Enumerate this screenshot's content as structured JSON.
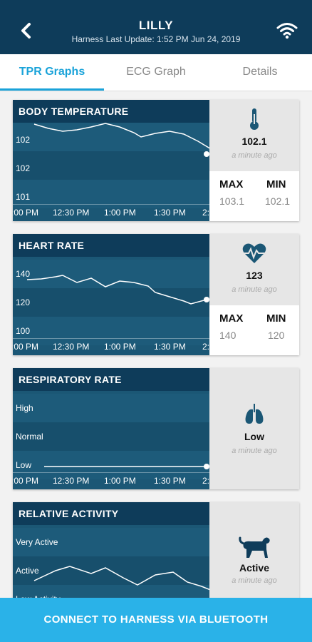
{
  "header": {
    "title": "LILLY",
    "subtitle": "Harness Last Update: 1:52 PM Jun 24, 2019",
    "back_icon": "chevron-left-icon",
    "wifi_icon": "wifi-icon"
  },
  "tabs": [
    {
      "label": "TPR Graphs",
      "active": true
    },
    {
      "label": "ECG Graph",
      "active": false
    },
    {
      "label": "Details",
      "active": false
    }
  ],
  "time_labels": [
    ":00 PM",
    "12:30 PM",
    "1:00 PM",
    "1:30 PM",
    "2:"
  ],
  "cards": {
    "body_temperature": {
      "title": "BODY TEMPERATURE",
      "y_labels": [
        "102",
        "102",
        "101"
      ],
      "value": "102.1",
      "ago": "a minute ago",
      "max_label": "MAX",
      "min_label": "MIN",
      "max": "103.1",
      "min": "102.1",
      "icon": "thermometer-icon"
    },
    "heart_rate": {
      "title": "HEART RATE",
      "y_labels": [
        "140",
        "120",
        "100"
      ],
      "value": "123",
      "ago": "a minute ago",
      "max_label": "MAX",
      "min_label": "MIN",
      "max": "140",
      "min": "120",
      "icon": "heart-pulse-icon"
    },
    "respiratory_rate": {
      "title": "RESPIRATORY RATE",
      "y_labels": [
        "High",
        "Normal",
        "Low"
      ],
      "value": "Low",
      "ago": "a minute ago",
      "icon": "lungs-icon"
    },
    "relative_activity": {
      "title": "RELATIVE ACTIVITY",
      "y_labels": [
        "Very Active",
        "Active",
        "Low Activity"
      ],
      "value": "Active",
      "ago": "a minute ago",
      "icon": "dog-icon"
    }
  },
  "connect_button": "CONNECT TO HARNESS VIA BLUETOOTH",
  "colors": {
    "header": "#0e3c5a",
    "accent": "#1aa3d9",
    "graph_bg": "#1b5775",
    "connect": "#2ab2e8"
  }
}
